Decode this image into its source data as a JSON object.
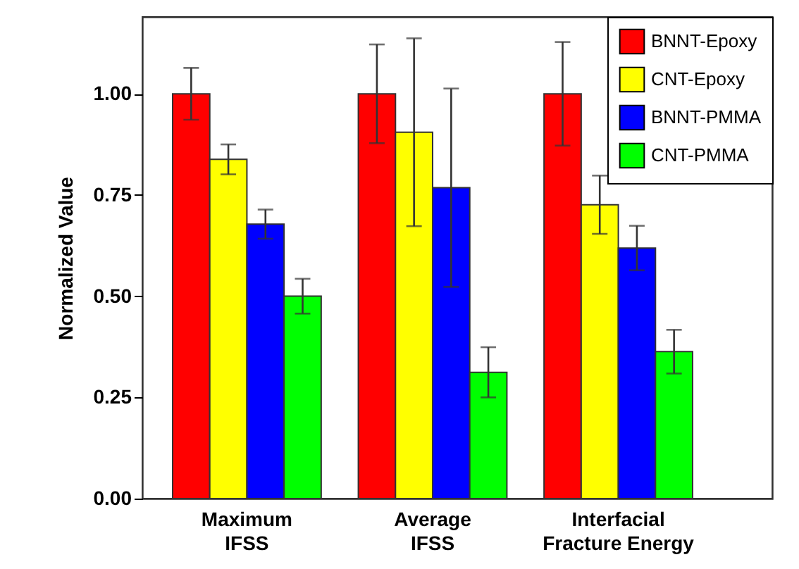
{
  "chart_data": {
    "type": "bar",
    "ylabel": "Normalized Value",
    "categories": [
      "Maximum IFSS",
      "Average IFSS",
      "Interfacial Fracture Energy"
    ],
    "series": [
      {
        "name": "BNNT-Epoxy",
        "color": "#ff0000",
        "values": [
          1.0,
          1.0,
          1.0
        ],
        "errors": [
          0.064,
          0.122,
          0.128
        ]
      },
      {
        "name": "CNT-Epoxy",
        "color": "#ffff00",
        "values": [
          0.838,
          0.905,
          0.726
        ],
        "errors": [
          0.037,
          0.232,
          0.072
        ]
      },
      {
        "name": "BNNT-PMMA",
        "color": "#0000ff",
        "values": [
          0.678,
          0.768,
          0.619
        ],
        "errors": [
          0.036,
          0.245,
          0.055
        ]
      },
      {
        "name": "CNT-PMMA",
        "color": "#00ff00",
        "values": [
          0.5,
          0.312,
          0.363
        ],
        "errors": [
          0.043,
          0.062,
          0.054
        ]
      }
    ],
    "ylim": [
      0,
      1.19
    ],
    "yticks": [
      {
        "value": 0,
        "label": "0.00"
      },
      {
        "value": 0.25,
        "label": "0.25"
      },
      {
        "value": 0.5,
        "label": "0.50"
      },
      {
        "value": 0.75,
        "label": "0.75"
      },
      {
        "value": 1,
        "label": "1.00"
      }
    ],
    "grid": false,
    "legend": "top right"
  }
}
